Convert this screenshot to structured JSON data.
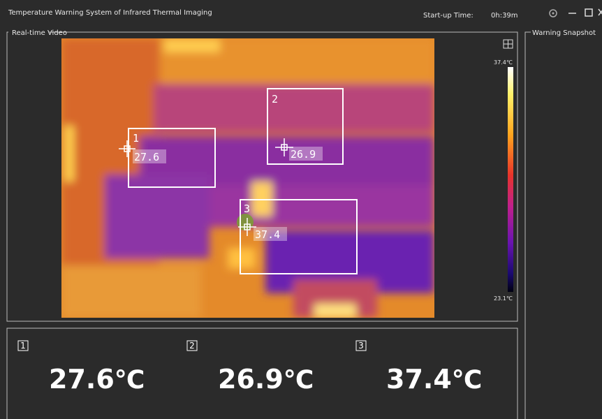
{
  "window": {
    "title": "Temperature Warning System of Infrared Thermal Imaging",
    "startup_label": "Start-up Time:",
    "startup_time": "0h:39m"
  },
  "video": {
    "title": "Real-time Video",
    "scale_max": "37.4℃",
    "scale_min": "23.1℃",
    "regions": [
      {
        "label": "1",
        "temperature": "27.6"
      },
      {
        "label": "2",
        "temperature": "26.9"
      },
      {
        "label": "3",
        "temperature": "37.4"
      }
    ]
  },
  "readings": [
    {
      "index": "1",
      "value": "27.6",
      "unit": "℃"
    },
    {
      "index": "2",
      "value": "26.9",
      "unit": "℃"
    },
    {
      "index": "3",
      "value": "37.4",
      "unit": "℃"
    }
  ],
  "snapshot": {
    "title": "Warning Snapshot"
  }
}
